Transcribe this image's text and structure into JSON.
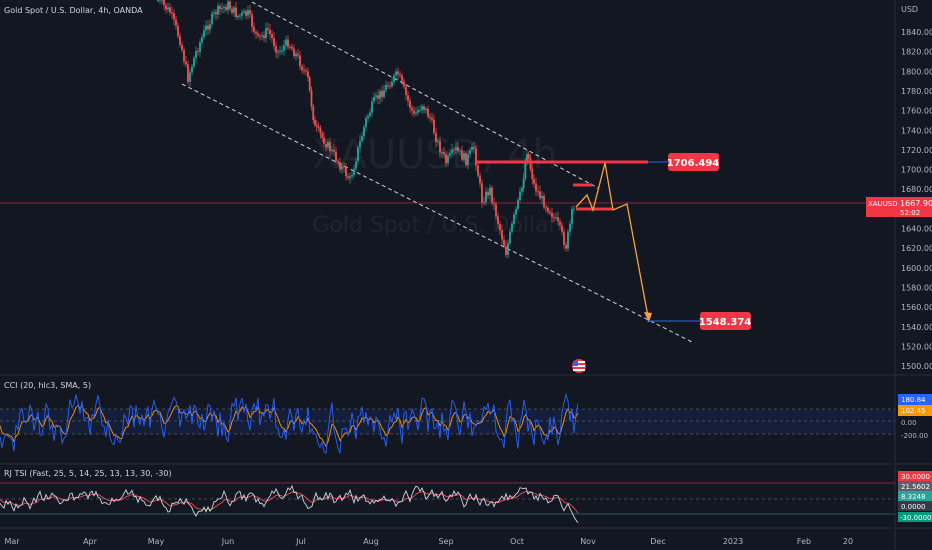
{
  "header": {
    "symbol_title": "Gold Spot / U.S. Dollar, 4h, OANDA"
  },
  "watermark": {
    "line1": "XAUUSD, 4h",
    "line2": "Gold Spot / U.S. Dollar"
  },
  "price_axis": {
    "currency": "USD",
    "ticks": [
      "1840.000",
      "1820.000",
      "1800.000",
      "1780.000",
      "1760.000",
      "1740.000",
      "1720.000",
      "1700.000",
      "1680.000",
      "1660.000",
      "1640.000",
      "1620.000",
      "1600.000",
      "1580.000",
      "1560.000",
      "1540.000",
      "1520.000",
      "1500.000"
    ]
  },
  "current_price": {
    "symbol": "XAUUSD",
    "price": "1667.905",
    "countdown": "52:02",
    "color": "#f23645"
  },
  "levels": {
    "resistance_label": "1706.494",
    "target_label": "1548.374"
  },
  "time_axis": {
    "labels": [
      "Mar",
      "Apr",
      "May",
      "Jun",
      "Jul",
      "Aug",
      "Sep",
      "Oct",
      "Nov",
      "Dec",
      "2023",
      "Feb",
      "20"
    ]
  },
  "cci": {
    "label": "CCI (20, hlc3, SMA, 5)",
    "value_blue": "180.84",
    "value_orange": "102.45",
    "zero": "0.00",
    "lower": "-200.00"
  },
  "tsi": {
    "label": "RJ TSI (Fast, 25, 5, 14, 25, 13, 13, 30, -30)",
    "upper": "30.0000",
    "v1": "21.5602",
    "v2": "8.3248",
    "zero": "0.0000",
    "lower": "-30.0000"
  },
  "colors": {
    "background": "#131722",
    "up_candle": "#26a69a",
    "down_candle": "#ef5350",
    "accent_red": "#f23645",
    "projection": "#f7a23e",
    "cci_blue": "#2962ff",
    "cci_orange": "#ff9800"
  },
  "icons": {
    "flag": "us-flag-icon"
  }
}
